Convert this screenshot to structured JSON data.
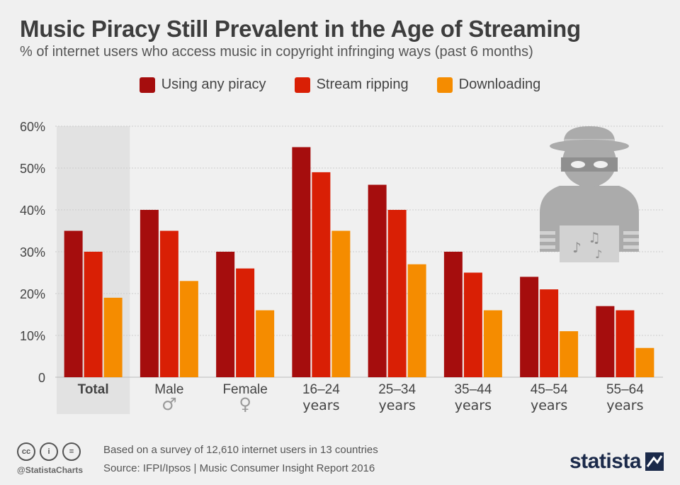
{
  "header": {
    "title": "Music Piracy Still Prevalent in the Age of Streaming",
    "subtitle": "% of internet users who access music in copyright infringing ways (past 6 months)"
  },
  "colors": {
    "series": [
      "#a50d0d",
      "#d91f05",
      "#f58c00"
    ],
    "grid": "#cccccc",
    "highlight_band": "#e2e2e2",
    "axis_text": "#444444",
    "icon": "#ababab",
    "brand": "#1b2a4a"
  },
  "chart_data": {
    "type": "bar",
    "title": "Music Piracy Still Prevalent in the Age of Streaming",
    "subtitle": "% of internet users who access music in copyright infringing ways (past 6 months)",
    "xlabel": "",
    "ylabel": "",
    "ylim": [
      0,
      60
    ],
    "y_ticks": [
      0,
      10,
      20,
      30,
      40,
      50,
      60
    ],
    "y_tick_labels": [
      "0",
      "10%",
      "20%",
      "30%",
      "40%",
      "50%",
      "60%"
    ],
    "grid": true,
    "legend_position": "top-center",
    "categories": [
      {
        "line1": "Total",
        "line2": "",
        "bold": true,
        "highlight": true
      },
      {
        "line1": "Male",
        "line2": "♂",
        "bold": false,
        "highlight": false
      },
      {
        "line1": "Female",
        "line2": "♀",
        "bold": false,
        "highlight": false
      },
      {
        "line1": "16–24",
        "line2": "years",
        "bold": false,
        "highlight": false
      },
      {
        "line1": "25–34",
        "line2": "years",
        "bold": false,
        "highlight": false
      },
      {
        "line1": "35–44",
        "line2": "years",
        "bold": false,
        "highlight": false
      },
      {
        "line1": "45–54",
        "line2": "years",
        "bold": false,
        "highlight": false
      },
      {
        "line1": "55–64",
        "line2": "years",
        "bold": false,
        "highlight": false
      }
    ],
    "series": [
      {
        "name": "Using any piracy",
        "values": [
          35,
          40,
          30,
          55,
          46,
          30,
          24,
          17
        ]
      },
      {
        "name": "Stream ripping",
        "values": [
          30,
          35,
          26,
          49,
          40,
          25,
          21,
          16
        ]
      },
      {
        "name": "Downloading",
        "values": [
          19,
          23,
          16,
          35,
          27,
          16,
          11,
          7
        ]
      }
    ]
  },
  "illustration": {
    "icon": "music-pirate-icon"
  },
  "footer": {
    "cc_icons": [
      {
        "icon": "cc-icon",
        "glyph": "cc"
      },
      {
        "icon": "by-icon",
        "glyph": "i"
      },
      {
        "icon": "nd-icon",
        "glyph": "="
      }
    ],
    "handle": "@StatistaCharts",
    "note": "Based on a survey of 12,610 internet users in 13 countries",
    "source": "Source: IFPI/Ipsos | Music Consumer Insight Report 2016",
    "brand": "statista"
  }
}
